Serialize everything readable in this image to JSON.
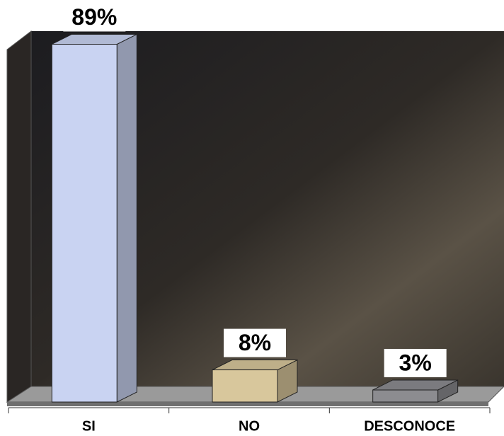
{
  "chart_data": {
    "type": "bar3d",
    "categories": [
      "SI",
      "NO",
      "DESCONOCE"
    ],
    "values": [
      89,
      8,
      3
    ],
    "value_labels": [
      "89%",
      "8%",
      "3%"
    ],
    "colors": [
      "#c9d3f2",
      "#d8c79c",
      "#8c8c90"
    ],
    "ylim": [
      0,
      100
    ]
  }
}
